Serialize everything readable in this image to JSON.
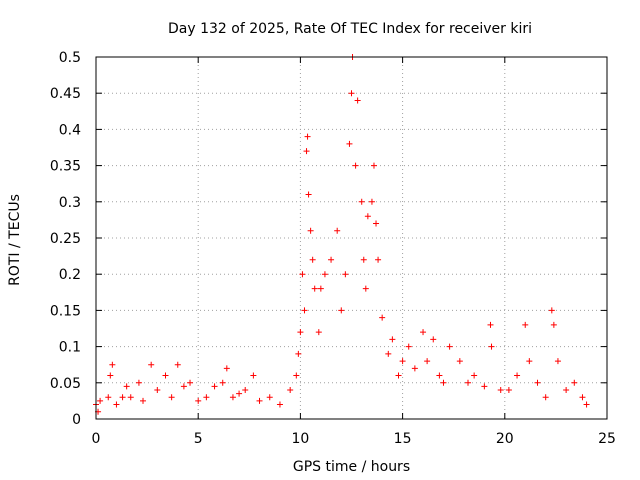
{
  "chart_data": {
    "type": "scatter",
    "title": "Day 132 of 2025, Rate Of TEC Index for receiver kiri",
    "xlabel": "GPS time / hours",
    "ylabel": "ROTI / TECUs",
    "xlim": [
      0,
      25
    ],
    "ylim": [
      0,
      0.5
    ],
    "xticks": [
      0,
      5,
      10,
      15,
      20,
      25
    ],
    "xtick_labels": [
      "0",
      "5",
      "10",
      "15",
      "20",
      "25"
    ],
    "yticks": [
      0,
      0.05,
      0.1,
      0.15,
      0.2,
      0.25,
      0.3,
      0.35,
      0.4,
      0.45,
      0.5
    ],
    "ytick_labels": [
      "0",
      "0.05",
      "0.1",
      "0.15",
      "0.2",
      "0.25",
      "0.3",
      "0.35",
      "0.4",
      "0.45",
      "0.5"
    ],
    "grid": true,
    "marker": "plus",
    "color": "#ff0000",
    "series": [
      {
        "name": "ROTI",
        "points": [
          [
            0.0,
            0.02
          ],
          [
            0.1,
            0.01
          ],
          [
            0.2,
            0.025
          ],
          [
            0.6,
            0.03
          ],
          [
            0.7,
            0.06
          ],
          [
            0.8,
            0.075
          ],
          [
            1.0,
            0.02
          ],
          [
            1.3,
            0.03
          ],
          [
            1.5,
            0.045
          ],
          [
            1.7,
            0.03
          ],
          [
            2.1,
            0.05
          ],
          [
            2.3,
            0.025
          ],
          [
            2.7,
            0.075
          ],
          [
            3.0,
            0.04
          ],
          [
            3.4,
            0.06
          ],
          [
            3.7,
            0.03
          ],
          [
            4.0,
            0.075
          ],
          [
            4.3,
            0.045
          ],
          [
            4.6,
            0.05
          ],
          [
            5.0,
            0.025
          ],
          [
            5.4,
            0.03
          ],
          [
            5.8,
            0.045
          ],
          [
            6.2,
            0.05
          ],
          [
            6.4,
            0.07
          ],
          [
            6.7,
            0.03
          ],
          [
            7.0,
            0.035
          ],
          [
            7.3,
            0.04
          ],
          [
            7.7,
            0.06
          ],
          [
            8.0,
            0.025
          ],
          [
            8.5,
            0.03
          ],
          [
            9.0,
            0.02
          ],
          [
            9.5,
            0.04
          ],
          [
            9.8,
            0.06
          ],
          [
            9.9,
            0.09
          ],
          [
            10.0,
            0.12
          ],
          [
            10.1,
            0.2
          ],
          [
            10.2,
            0.15
          ],
          [
            10.3,
            0.37
          ],
          [
            10.35,
            0.39
          ],
          [
            10.4,
            0.31
          ],
          [
            10.5,
            0.26
          ],
          [
            10.6,
            0.22
          ],
          [
            10.7,
            0.18
          ],
          [
            10.9,
            0.12
          ],
          [
            11.0,
            0.18
          ],
          [
            11.2,
            0.2
          ],
          [
            11.5,
            0.22
          ],
          [
            11.8,
            0.26
          ],
          [
            12.0,
            0.15
          ],
          [
            12.2,
            0.2
          ],
          [
            12.4,
            0.38
          ],
          [
            12.5,
            0.45
          ],
          [
            12.55,
            0.5
          ],
          [
            12.7,
            0.35
          ],
          [
            12.8,
            0.44
          ],
          [
            13.0,
            0.3
          ],
          [
            13.1,
            0.22
          ],
          [
            13.2,
            0.18
          ],
          [
            13.3,
            0.28
          ],
          [
            13.5,
            0.3
          ],
          [
            13.6,
            0.35
          ],
          [
            13.7,
            0.27
          ],
          [
            13.8,
            0.22
          ],
          [
            14.0,
            0.14
          ],
          [
            14.3,
            0.09
          ],
          [
            14.5,
            0.11
          ],
          [
            14.8,
            0.06
          ],
          [
            15.0,
            0.08
          ],
          [
            15.3,
            0.1
          ],
          [
            15.6,
            0.07
          ],
          [
            16.0,
            0.12
          ],
          [
            16.2,
            0.08
          ],
          [
            16.5,
            0.11
          ],
          [
            16.8,
            0.06
          ],
          [
            17.0,
            0.05
          ],
          [
            17.3,
            0.1
          ],
          [
            17.8,
            0.08
          ],
          [
            18.2,
            0.05
          ],
          [
            18.5,
            0.06
          ],
          [
            19.0,
            0.045
          ],
          [
            19.3,
            0.13
          ],
          [
            19.35,
            0.1
          ],
          [
            19.8,
            0.04
          ],
          [
            20.2,
            0.04
          ],
          [
            20.6,
            0.06
          ],
          [
            21.0,
            0.13
          ],
          [
            21.2,
            0.08
          ],
          [
            21.6,
            0.05
          ],
          [
            22.0,
            0.03
          ],
          [
            22.3,
            0.15
          ],
          [
            22.4,
            0.13
          ],
          [
            22.6,
            0.08
          ],
          [
            23.0,
            0.04
          ],
          [
            23.4,
            0.05
          ],
          [
            23.8,
            0.03
          ],
          [
            24.0,
            0.02
          ]
        ]
      }
    ]
  }
}
